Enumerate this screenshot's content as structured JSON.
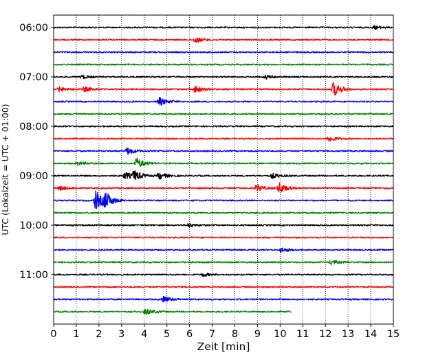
{
  "chart_data": {
    "type": "line",
    "title": "",
    "xlabel": "Zeit  [min]",
    "ylabel": "UTC (Lokalzeit = UTC + 01:00)",
    "xlim": [
      0,
      15
    ],
    "x_ticks": [
      "0",
      "1",
      "2",
      "3",
      "4",
      "5",
      "6",
      "7",
      "8",
      "9",
      "10",
      "11",
      "12",
      "13",
      "14",
      "15"
    ],
    "y_ticks": [
      "06:00",
      "07:00",
      "08:00",
      "09:00",
      "10:00",
      "11:00"
    ],
    "y_tick_rows": [
      0,
      4,
      8,
      12,
      16,
      20
    ],
    "grid": "vertical dotted lines at every minute",
    "trace_interval_minutes": 15,
    "trace_colors": [
      "#000000",
      "#ff0000",
      "#0000ff",
      "#008000"
    ],
    "traces": [
      {
        "start": "06:00",
        "end_min": 15,
        "color": "#000000",
        "events": [
          {
            "t": 14.1,
            "a": 3
          }
        ]
      },
      {
        "start": "06:15",
        "end_min": 15,
        "color": "#ff0000",
        "events": [
          {
            "t": 6.2,
            "a": 5
          }
        ]
      },
      {
        "start": "06:30",
        "end_min": 15,
        "color": "#0000ff",
        "events": []
      },
      {
        "start": "06:45",
        "end_min": 15,
        "color": "#008000",
        "events": []
      },
      {
        "start": "07:00",
        "end_min": 15,
        "color": "#000000",
        "events": [
          {
            "t": 1.2,
            "a": 3
          },
          {
            "t": 9.3,
            "a": 3
          }
        ]
      },
      {
        "start": "07:15",
        "end_min": 15,
        "color": "#ff0000",
        "events": [
          {
            "t": 0.2,
            "a": 4
          },
          {
            "t": 1.3,
            "a": 4
          },
          {
            "t": 6.2,
            "a": 6
          },
          {
            "t": 12.3,
            "a": 12
          }
        ]
      },
      {
        "start": "07:30",
        "end_min": 15,
        "color": "#0000ff",
        "events": [
          {
            "t": 4.6,
            "a": 7
          }
        ]
      },
      {
        "start": "07:45",
        "end_min": 15,
        "color": "#008000",
        "events": []
      },
      {
        "start": "08:00",
        "end_min": 15,
        "color": "#000000",
        "events": []
      },
      {
        "start": "08:15",
        "end_min": 15,
        "color": "#ff0000",
        "events": [
          {
            "t": 12.1,
            "a": 5
          }
        ]
      },
      {
        "start": "08:30",
        "end_min": 15,
        "color": "#0000ff",
        "events": [
          {
            "t": 3.2,
            "a": 6
          }
        ]
      },
      {
        "start": "08:45",
        "end_min": 15,
        "color": "#008000",
        "events": [
          {
            "t": 1.0,
            "a": 3
          },
          {
            "t": 3.6,
            "a": 9
          }
        ]
      },
      {
        "start": "09:00",
        "end_min": 15,
        "color": "#000000",
        "events": [
          {
            "t": 3.1,
            "a": 6
          },
          {
            "t": 3.5,
            "a": 8
          },
          {
            "t": 4.6,
            "a": 6
          },
          {
            "t": 9.6,
            "a": 4
          }
        ]
      },
      {
        "start": "09:15",
        "end_min": 15,
        "color": "#ff0000",
        "events": [
          {
            "t": 0.2,
            "a": 4
          },
          {
            "t": 8.9,
            "a": 6
          },
          {
            "t": 9.9,
            "a": 9
          }
        ]
      },
      {
        "start": "09:30",
        "end_min": 15,
        "color": "#0000ff",
        "events": [
          {
            "t": 1.8,
            "a": 16
          },
          {
            "t": 2.2,
            "a": 12
          }
        ]
      },
      {
        "start": "09:45",
        "end_min": 15,
        "color": "#008000",
        "events": []
      },
      {
        "start": "10:00",
        "end_min": 15,
        "color": "#000000",
        "events": [
          {
            "t": 5.9,
            "a": 3
          }
        ]
      },
      {
        "start": "10:15",
        "end_min": 15,
        "color": "#ff0000",
        "events": []
      },
      {
        "start": "10:30",
        "end_min": 15,
        "color": "#0000ff",
        "events": [
          {
            "t": 10.0,
            "a": 4
          }
        ]
      },
      {
        "start": "10:45",
        "end_min": 15,
        "color": "#008000",
        "events": [
          {
            "t": 12.2,
            "a": 4
          }
        ]
      },
      {
        "start": "11:00",
        "end_min": 15,
        "color": "#000000",
        "events": [
          {
            "t": 6.5,
            "a": 3
          }
        ]
      },
      {
        "start": "11:15",
        "end_min": 15,
        "color": "#ff0000",
        "events": []
      },
      {
        "start": "11:30",
        "end_min": 15,
        "color": "#0000ff",
        "events": [
          {
            "t": 4.8,
            "a": 5
          }
        ]
      },
      {
        "start": "11:45",
        "end_min": 10.5,
        "color": "#008000",
        "events": [
          {
            "t": 4.0,
            "a": 5
          }
        ]
      }
    ]
  }
}
